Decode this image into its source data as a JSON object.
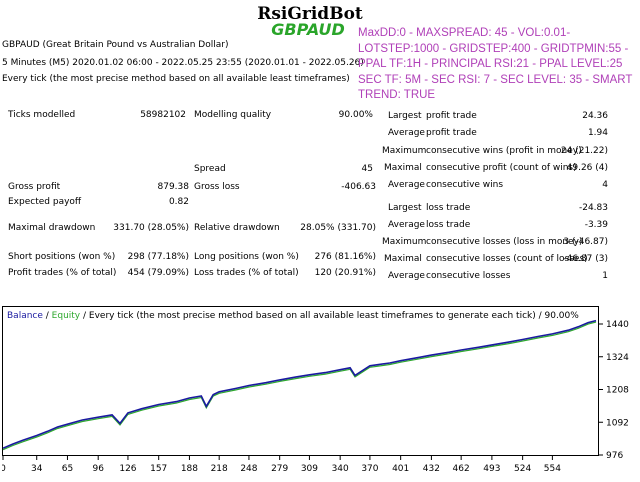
{
  "header": {
    "ea_name": "RsiGridBot",
    "symbol": "GBPAUD",
    "instrument": "GBPAUD (Great Britain Pound vs Australian Dollar)",
    "period": "5 Minutes (M5) 2020.01.02 06:00 - 2022.05.25 23:55 (2020.01.01 - 2022.05.26)",
    "model": "Every tick (the most precise method based on all available least timeframes)"
  },
  "params": [
    "MaxDD:0 - MAXSPREAD: 45 - VOL:0.01-",
    "LOTSTEP:1000 - GRIDSTEP:400 - GRIDTPMIN:55 -",
    "PPAL TF:1H - PRINCIPAL RSI:21 - PPAL LEVEL:25",
    "SEC TF: 5M - SEC RSI: 7 - SEC LEVEL: 35 - SMART",
    "TREND: TRUE"
  ],
  "stats": {
    "ticks_label": "Ticks modelled",
    "ticks_value": "58982102",
    "quality_label": "Modelling quality",
    "quality_value": "90.00%",
    "spread_label": "Spread",
    "spread_value": "45",
    "gross_profit_label": "Gross profit",
    "gross_profit_value": "879.38",
    "gross_loss_label": "Gross loss",
    "gross_loss_value": "-406.63",
    "expected_label": "Expected payoff",
    "expected_value": "0.82",
    "max_dd_label": "Maximal drawdown",
    "max_dd_value": "331.70 (28.05%)",
    "rel_dd_label": "Relative drawdown",
    "rel_dd_value": "28.05% (331.70)",
    "short_label": "Short positions (won %)",
    "short_value": "298 (77.18%)",
    "long_label": "Long positions (won %)",
    "long_value": "276 (81.16%)",
    "profit_trades_label": "Profit trades (% of total)",
    "profit_trades_value": "454 (79.09%)",
    "loss_trades_label": "Loss trades (% of total)",
    "loss_trades_value": "120 (20.91%)",
    "right": [
      {
        "prefix": "Largest",
        "label": "profit trade",
        "value": "24.36"
      },
      {
        "prefix": "Average",
        "label": "profit trade",
        "value": "1.94"
      },
      {
        "prefix": "Maximum",
        "label": "consecutive wins (profit in money)",
        "value": "24 (21.22)"
      },
      {
        "prefix": "Maximal",
        "label": "consecutive profit (count of wins)",
        "value": "49.26 (4)"
      },
      {
        "prefix": "Average",
        "label": "consecutive wins",
        "value": "4"
      },
      {
        "prefix": "Largest",
        "label": "loss trade",
        "value": "-24.83"
      },
      {
        "prefix": "Average",
        "label": "loss trade",
        "value": "-3.39"
      },
      {
        "prefix": "Maximum",
        "label": "consecutive losses (loss in money)",
        "value": "3 (-46.87)"
      },
      {
        "prefix": "Maximal",
        "label": "consecutive losses (count of losses)",
        "value": "-46.87 (3)"
      },
      {
        "prefix": "Average",
        "label": "consecutive losses",
        "value": "1"
      }
    ]
  },
  "chart_data": {
    "type": "line",
    "legend": {
      "balance": "Balance",
      "sep": " / ",
      "equity": "Equity",
      "rest": " / Every tick (the most precise method based on all available least timeframes to generate each tick) / 90.00%"
    },
    "x_ticks": [
      "0",
      "34",
      "65",
      "96",
      "126",
      "157",
      "188",
      "218",
      "248",
      "279",
      "309",
      "340",
      "370",
      "401",
      "432",
      "462",
      "493",
      "524",
      "554"
    ],
    "y_ticks": [
      "1440",
      "1324",
      "1208",
      "1092",
      "976"
    ],
    "xlim": [
      0,
      600
    ],
    "ylim": [
      976,
      1440
    ],
    "colors": {
      "balance": "#1a1aa0",
      "equity": "#2ea82e"
    },
    "series": [
      {
        "name": "Balance",
        "x": [
          0,
          10,
          20,
          34,
          45,
          55,
          65,
          80,
          96,
          110,
          118,
          126,
          140,
          157,
          175,
          188,
          200,
          205,
          212,
          218,
          235,
          248,
          265,
          279,
          295,
          309,
          325,
          340,
          350,
          355,
          370,
          390,
          401,
          420,
          432,
          450,
          462,
          480,
          493,
          510,
          524,
          540,
          554,
          570,
          580,
          590,
          598
        ],
        "y": [
          1000,
          1015,
          1028,
          1045,
          1060,
          1075,
          1085,
          1100,
          1110,
          1118,
          1088,
          1125,
          1140,
          1155,
          1165,
          1178,
          1185,
          1148,
          1190,
          1200,
          1212,
          1222,
          1232,
          1242,
          1252,
          1260,
          1268,
          1278,
          1285,
          1258,
          1292,
          1302,
          1310,
          1322,
          1330,
          1340,
          1348,
          1358,
          1366,
          1376,
          1385,
          1396,
          1405,
          1418,
          1430,
          1445,
          1452
        ]
      }
    ]
  }
}
